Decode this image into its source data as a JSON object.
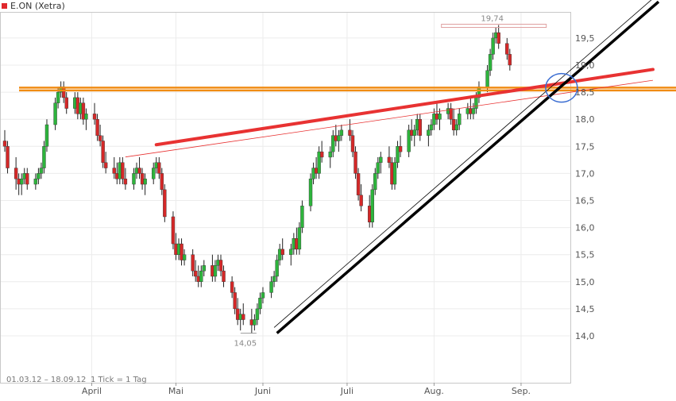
{
  "legend": {
    "label": "E.ON (Xetra)",
    "color": "#e0282c"
  },
  "footer": {
    "range": "01.03.12 – 18.09.12",
    "tick": "1 Tick = 1 Tag"
  },
  "chart_data": {
    "type": "candlestick",
    "instrument": "E.ON (Xetra)",
    "ylim": [
      13.75,
      20.0
    ],
    "y_ticks": [
      "14,0",
      "14,5",
      "15,0",
      "15,5",
      "16,0",
      "16,5",
      "17,0",
      "17,5",
      "18,0",
      "18,5",
      "19,0",
      "19,5"
    ],
    "x_ticks": [
      {
        "label": "April",
        "date": "2012-04-01"
      },
      {
        "label": "Mai",
        "date": "2012-05-01"
      },
      {
        "label": "Juni",
        "date": "2012-06-01"
      },
      {
        "label": "Juli",
        "date": "2012-07-01"
      },
      {
        "label": "Aug.",
        "date": "2012-08-01"
      },
      {
        "label": "Sep.",
        "date": "2012-09-01"
      }
    ],
    "annotations": {
      "high": "19,74",
      "low": "14,05"
    },
    "colors": {
      "up": "#2db43c",
      "down": "#d42828",
      "support": "#000000",
      "resistance": "#e83232",
      "horizontal": "#f08c14",
      "circle": "#3c6ed2"
    },
    "start_date": "2012-03-01",
    "end_date": "2012-09-18",
    "candles": [
      [
        17.6,
        17.8,
        17.4,
        17.5
      ],
      [
        17.5,
        17.6,
        17.0,
        17.1
      ],
      [
        17.1,
        17.3,
        16.7,
        16.9
      ],
      [
        16.9,
        17.0,
        16.6,
        16.8
      ],
      [
        16.8,
        17.0,
        16.6,
        16.9
      ],
      [
        16.9,
        17.1,
        16.8,
        17.0
      ],
      [
        17.0,
        17.1,
        16.7,
        16.8
      ],
      [
        16.8,
        17.0,
        16.7,
        16.9
      ],
      [
        16.9,
        17.1,
        16.8,
        17.0
      ],
      [
        17.0,
        17.2,
        16.9,
        17.1
      ],
      [
        17.1,
        17.6,
        17.0,
        17.5
      ],
      [
        17.5,
        18.0,
        17.4,
        17.9
      ],
      [
        17.9,
        18.4,
        17.8,
        18.3
      ],
      [
        18.3,
        18.6,
        18.2,
        18.5
      ],
      [
        18.5,
        18.7,
        18.4,
        18.6
      ],
      [
        18.6,
        18.7,
        18.3,
        18.4
      ],
      [
        18.4,
        18.5,
        18.1,
        18.2
      ],
      [
        18.2,
        18.5,
        18.1,
        18.4
      ],
      [
        18.4,
        18.5,
        18.0,
        18.1
      ],
      [
        18.1,
        18.4,
        18.0,
        18.3
      ],
      [
        18.3,
        18.4,
        17.9,
        18.0
      ],
      [
        18.0,
        18.2,
        17.8,
        18.1
      ],
      [
        18.1,
        18.3,
        17.9,
        18.0
      ],
      [
        18.0,
        18.1,
        17.6,
        17.7
      ],
      [
        17.7,
        17.9,
        17.5,
        17.6
      ],
      [
        17.6,
        17.7,
        17.1,
        17.2
      ],
      [
        17.2,
        17.4,
        17.0,
        17.1
      ],
      [
        17.1,
        17.3,
        16.9,
        17.0
      ],
      [
        17.0,
        17.2,
        16.8,
        16.9
      ],
      [
        16.9,
        17.3,
        16.8,
        17.2
      ],
      [
        17.2,
        17.3,
        16.8,
        16.9
      ],
      [
        16.9,
        17.1,
        16.7,
        16.8
      ],
      [
        16.8,
        17.1,
        16.7,
        17.0
      ],
      [
        17.0,
        17.2,
        16.9,
        17.1
      ],
      [
        17.1,
        17.3,
        16.9,
        17.0
      ],
      [
        17.0,
        17.1,
        16.7,
        16.8
      ],
      [
        16.8,
        17.0,
        16.6,
        16.9
      ],
      [
        16.9,
        17.2,
        16.8,
        17.1
      ],
      [
        17.1,
        17.3,
        17.0,
        17.2
      ],
      [
        17.2,
        17.3,
        16.9,
        17.0
      ],
      [
        17.0,
        17.1,
        16.6,
        16.7
      ],
      [
        16.7,
        16.8,
        16.1,
        16.2
      ],
      [
        16.2,
        16.3,
        15.6,
        15.7
      ],
      [
        15.7,
        15.9,
        15.4,
        15.5
      ],
      [
        15.5,
        15.8,
        15.4,
        15.7
      ],
      [
        15.7,
        15.8,
        15.3,
        15.4
      ],
      [
        15.4,
        15.6,
        15.3,
        15.5
      ],
      [
        15.5,
        15.6,
        15.1,
        15.2
      ],
      [
        15.2,
        15.4,
        15.0,
        15.1
      ],
      [
        15.1,
        15.3,
        14.9,
        15.0
      ],
      [
        15.0,
        15.3,
        14.9,
        15.2
      ],
      [
        15.2,
        15.4,
        15.1,
        15.3
      ],
      [
        15.3,
        15.5,
        15.0,
        15.1
      ],
      [
        15.1,
        15.4,
        15.0,
        15.3
      ],
      [
        15.3,
        15.5,
        15.2,
        15.4
      ],
      [
        15.4,
        15.5,
        15.1,
        15.2
      ],
      [
        15.2,
        15.3,
        14.9,
        15.0
      ],
      [
        15.0,
        15.1,
        14.7,
        14.8
      ],
      [
        14.8,
        14.9,
        14.4,
        14.5
      ],
      [
        14.5,
        14.7,
        14.2,
        14.3
      ],
      [
        14.3,
        14.5,
        14.1,
        14.4
      ],
      [
        14.4,
        14.6,
        14.2,
        14.3
      ],
      [
        14.3,
        14.5,
        14.05,
        14.2
      ],
      [
        14.2,
        14.4,
        14.1,
        14.3
      ],
      [
        14.3,
        14.6,
        14.2,
        14.5
      ],
      [
        14.5,
        14.8,
        14.4,
        14.7
      ],
      [
        14.7,
        14.9,
        14.6,
        14.8
      ],
      [
        14.8,
        15.1,
        14.7,
        15.0
      ],
      [
        15.0,
        15.2,
        14.9,
        15.1
      ],
      [
        15.1,
        15.5,
        15.0,
        15.4
      ],
      [
        15.4,
        15.7,
        15.3,
        15.6
      ],
      [
        15.6,
        15.8,
        15.4,
        15.5
      ],
      [
        15.5,
        15.7,
        15.3,
        15.6
      ],
      [
        15.6,
        15.9,
        15.5,
        15.8
      ],
      [
        15.8,
        16.0,
        15.5,
        15.6
      ],
      [
        15.6,
        16.1,
        15.5,
        16.0
      ],
      [
        16.0,
        16.5,
        15.9,
        16.4
      ],
      [
        16.4,
        17.0,
        16.3,
        16.9
      ],
      [
        16.9,
        17.2,
        16.8,
        17.1
      ],
      [
        17.1,
        17.3,
        16.9,
        17.0
      ],
      [
        17.0,
        17.5,
        16.9,
        17.4
      ],
      [
        17.4,
        17.6,
        17.2,
        17.3
      ],
      [
        17.3,
        17.5,
        17.1,
        17.4
      ],
      [
        17.4,
        17.8,
        17.3,
        17.7
      ],
      [
        17.7,
        17.9,
        17.5,
        17.6
      ],
      [
        17.6,
        17.8,
        17.4,
        17.7
      ],
      [
        17.7,
        17.9,
        17.6,
        17.8
      ],
      [
        17.8,
        18.0,
        17.6,
        17.7
      ],
      [
        17.7,
        17.8,
        17.3,
        17.4
      ],
      [
        17.4,
        17.5,
        16.9,
        17.0
      ],
      [
        17.0,
        17.1,
        16.5,
        16.6
      ],
      [
        16.6,
        16.8,
        16.3,
        16.4
      ],
      [
        16.4,
        16.6,
        16.0,
        16.1
      ],
      [
        16.1,
        16.8,
        16.0,
        16.7
      ],
      [
        16.7,
        17.1,
        16.6,
        17.0
      ],
      [
        17.0,
        17.3,
        16.9,
        17.2
      ],
      [
        17.2,
        17.4,
        17.0,
        17.3
      ],
      [
        17.3,
        17.5,
        17.1,
        17.2
      ],
      [
        17.2,
        17.3,
        16.7,
        16.8
      ],
      [
        16.8,
        17.3,
        16.7,
        17.2
      ],
      [
        17.2,
        17.6,
        17.1,
        17.5
      ],
      [
        17.5,
        17.7,
        17.3,
        17.4
      ],
      [
        17.4,
        17.9,
        17.3,
        17.8
      ],
      [
        17.8,
        18.0,
        17.6,
        17.7
      ],
      [
        17.7,
        17.9,
        17.5,
        17.8
      ],
      [
        17.8,
        18.1,
        17.7,
        18.0
      ],
      [
        18.0,
        18.1,
        17.6,
        17.7
      ],
      [
        17.7,
        17.9,
        17.5,
        17.8
      ],
      [
        17.8,
        18.0,
        17.7,
        17.9
      ],
      [
        17.9,
        18.2,
        17.8,
        18.1
      ],
      [
        18.1,
        18.3,
        17.9,
        18.0
      ],
      [
        18.0,
        18.2,
        17.8,
        18.1
      ],
      [
        18.1,
        18.3,
        18.0,
        18.2
      ],
      [
        18.2,
        18.3,
        17.9,
        18.0
      ],
      [
        18.0,
        18.2,
        17.7,
        17.8
      ],
      [
        17.8,
        18.0,
        17.7,
        17.9
      ],
      [
        17.9,
        18.2,
        17.8,
        18.1
      ],
      [
        18.1,
        18.3,
        18.0,
        18.2
      ],
      [
        18.2,
        18.4,
        18.0,
        18.1
      ],
      [
        18.1,
        18.3,
        18.0,
        18.2
      ],
      [
        18.2,
        18.5,
        18.1,
        18.4
      ],
      [
        18.4,
        18.7,
        18.3,
        18.6
      ],
      [
        18.6,
        19.0,
        18.5,
        18.9
      ],
      [
        18.9,
        19.3,
        18.8,
        19.2
      ],
      [
        19.2,
        19.6,
        19.1,
        19.5
      ],
      [
        19.5,
        19.7,
        19.4,
        19.6
      ],
      [
        19.6,
        19.74,
        19.3,
        19.4
      ],
      [
        19.4,
        19.5,
        19.1,
        19.2
      ],
      [
        19.2,
        19.3,
        18.9,
        19.0
      ]
    ]
  }
}
